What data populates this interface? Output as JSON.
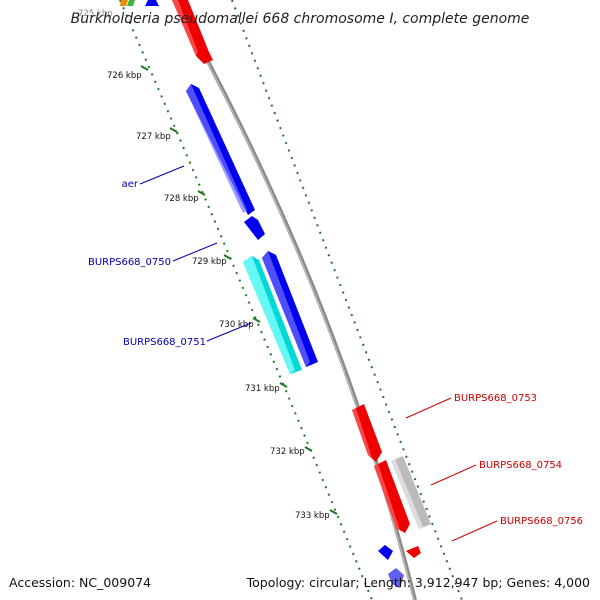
{
  "title": "Burkholderia pseudomallei 668 chromosome I, complete genome",
  "footer": {
    "accession": "Accession: NC_009074",
    "summary": "Topology: circular; Length: 3,912,947 bp; Genes: 4,000"
  },
  "colors": {
    "backbone": "#888888",
    "tick": "#1e7a1e",
    "forward_gene": "#0000ee",
    "forward_gene_alt": "#00e5e5",
    "reverse_gene": "#ee0000",
    "reverse_gene_alt": "#bbbbbb",
    "label_forward": "#0000aa",
    "label_reverse": "#cc0000"
  },
  "ticks": [
    {
      "label": "725 kbp"
    },
    {
      "label": "726 kbp"
    },
    {
      "label": "727 kbp"
    },
    {
      "label": "728 kbp"
    },
    {
      "label": "729 kbp"
    },
    {
      "label": "730 kbp"
    },
    {
      "label": "731 kbp"
    },
    {
      "label": "732 kbp"
    },
    {
      "label": "733 kbp"
    }
  ],
  "gene_labels": [
    {
      "name": "aer",
      "strand": "forward"
    },
    {
      "name": "BURPS668_0750",
      "strand": "forward"
    },
    {
      "name": "BURPS668_0751",
      "strand": "forward"
    },
    {
      "name": "BURPS668_0753",
      "strand": "reverse"
    },
    {
      "name": "BURPS668_0754",
      "strand": "reverse"
    },
    {
      "name": "BURPS668_0756",
      "strand": "reverse"
    }
  ]
}
